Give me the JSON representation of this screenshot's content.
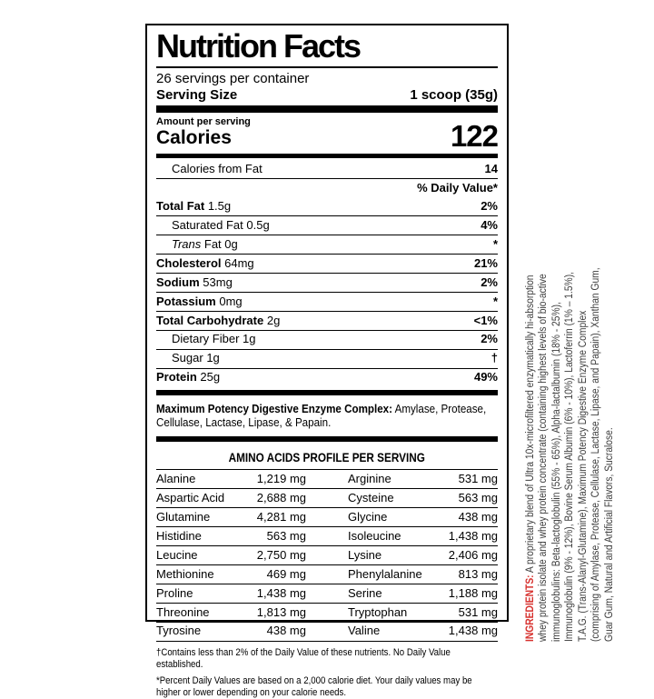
{
  "colors": {
    "text": "#000000",
    "ingredients_label_red": "#d7312e",
    "ingredients_body_gray": "#3c3c3c",
    "bar_black": "#000000"
  },
  "label": {
    "title": "Nutrition Facts",
    "servings_per_container": "26 servings per container",
    "serving_size_label": "Serving Size",
    "serving_size_value": "1 scoop (35g)",
    "amount_per_serving": "Amount per serving",
    "calories_label": "Calories",
    "calories_value": "122",
    "calories_from_fat_label": "Calories from Fat",
    "calories_from_fat_value": "14",
    "daily_value_header": "% Daily Value*",
    "nutrients": [
      {
        "name": "Total Fat",
        "amount": "1.5g",
        "dv": "2%",
        "bold": true,
        "indent": false,
        "italic_first": false
      },
      {
        "name": "Saturated Fat",
        "amount": "0.5g",
        "dv": "4%",
        "bold": false,
        "indent": true,
        "italic_first": false
      },
      {
        "name": "Trans Fat",
        "amount": "0g",
        "dv": "*",
        "bold": false,
        "indent": true,
        "italic_first": true
      },
      {
        "name": "Cholesterol",
        "amount": "64mg",
        "dv": "21%",
        "bold": true,
        "indent": false,
        "italic_first": false
      },
      {
        "name": "Sodium",
        "amount": "53mg",
        "dv": "2%",
        "bold": true,
        "indent": false,
        "italic_first": false
      },
      {
        "name": "Potassium",
        "amount": "0mg",
        "dv": "*",
        "bold": true,
        "indent": false,
        "italic_first": false
      },
      {
        "name": "Total Carbohydrate",
        "amount": "2g",
        "dv": "<1%",
        "bold": true,
        "indent": false,
        "italic_first": false
      },
      {
        "name": "Dietary Fiber",
        "amount": "1g",
        "dv": "2%",
        "bold": false,
        "indent": true,
        "italic_first": false
      },
      {
        "name": "Sugar",
        "amount": "1g",
        "dv": "†",
        "bold": false,
        "indent": true,
        "italic_first": false
      },
      {
        "name": "Protein",
        "amount": "25g",
        "dv": "49%",
        "bold": true,
        "indent": false,
        "italic_first": false
      }
    ],
    "enzyme_note_bold": "Maximum Potency Digestive Enzyme Complex:",
    "enzyme_note_rest": " Amylase, Protease, Cellulase, Lactase, Lipase, & Papain.",
    "amino_heading": "AMINO ACIDS PROFILE PER SERVING",
    "amino_rows": [
      {
        "l_name": "Alanine",
        "l_val": "1,219 mg",
        "r_name": "Arginine",
        "r_val": "531 mg"
      },
      {
        "l_name": "Aspartic Acid",
        "l_val": "2,688 mg",
        "r_name": "Cysteine",
        "r_val": "563 mg"
      },
      {
        "l_name": "Glutamine",
        "l_val": "4,281 mg",
        "r_name": "Glycine",
        "r_val": "438 mg"
      },
      {
        "l_name": "Histidine",
        "l_val": "563 mg",
        "r_name": "Isoleucine",
        "r_val": "1,438 mg"
      },
      {
        "l_name": "Leucine",
        "l_val": "2,750 mg",
        "r_name": "Lysine",
        "r_val": "2,406 mg"
      },
      {
        "l_name": "Methionine",
        "l_val": "469 mg",
        "r_name": "Phenylalanine",
        "r_val": "813 mg"
      },
      {
        "l_name": "Proline",
        "l_val": "1,438 mg",
        "r_name": "Serine",
        "r_val": "1,188 mg"
      },
      {
        "l_name": "Threonine",
        "l_val": "1,813 mg",
        "r_name": "Tryptophan",
        "r_val": "531 mg"
      },
      {
        "l_name": "Tyrosine",
        "l_val": "438 mg",
        "r_name": "Valine",
        "r_val": "1,438 mg"
      }
    ],
    "footnote_dagger": "†Contains less than 2% of the Daily Value of these nutrients. No Daily Value established.",
    "footnote_percent": "*Percent Daily Values are based on a 2,000 calorie diet. Your daily values may be higher or lower depending on your calorie needs."
  },
  "ingredients": {
    "label": "INGREDIENTS:",
    "text": " A proprietary blend of Ultra 10x-microfiltered enzymatically hi-absorption whey protein isolate and whey protein concentrate (containing highest levels of bio-active immunoglobulins: Beta-lactoglobulin (55% - 65%), Alpha-lactalbumin (18% - 25%), Immunoglobulin (9% - 12%), Bovine Serum Albumin (6% - 10%), Lactoferrin (1% – 1.5%), T.A.G. (Trans-Alanyl-Glutamine), Maximum Potency Digestive Enzyme Complex (comprising of Amylase, Protease, Cellulase, Lactase, Lipase, and Papain), Xanthan Gum, Guar Gum, Natural and Artificial Flavors, Sucralose."
  }
}
